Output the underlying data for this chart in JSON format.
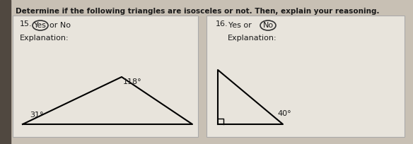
{
  "title": "Determine if the following triangles are isosceles or not. Then, explain your reasoning.",
  "title_fontsize": 7.5,
  "bg_color": "#c8c0b4",
  "paper_color": "#e8e4dc",
  "panel_border_color": "#aaaaaa",
  "text_color": "#1a1a1a",
  "q15_label": "15.",
  "q15_yes": "Yes",
  "q15_ornо": "or No",
  "q15_explanation": "Explanation:",
  "q16_label": "16.",
  "q16_yes_or": "Yes or",
  "q16_no": "No",
  "q16_explanation": "Explanation:",
  "tri1_angle_bl": "31°",
  "tri1_angle_top": "118°",
  "tri2_angle_br": "40°"
}
